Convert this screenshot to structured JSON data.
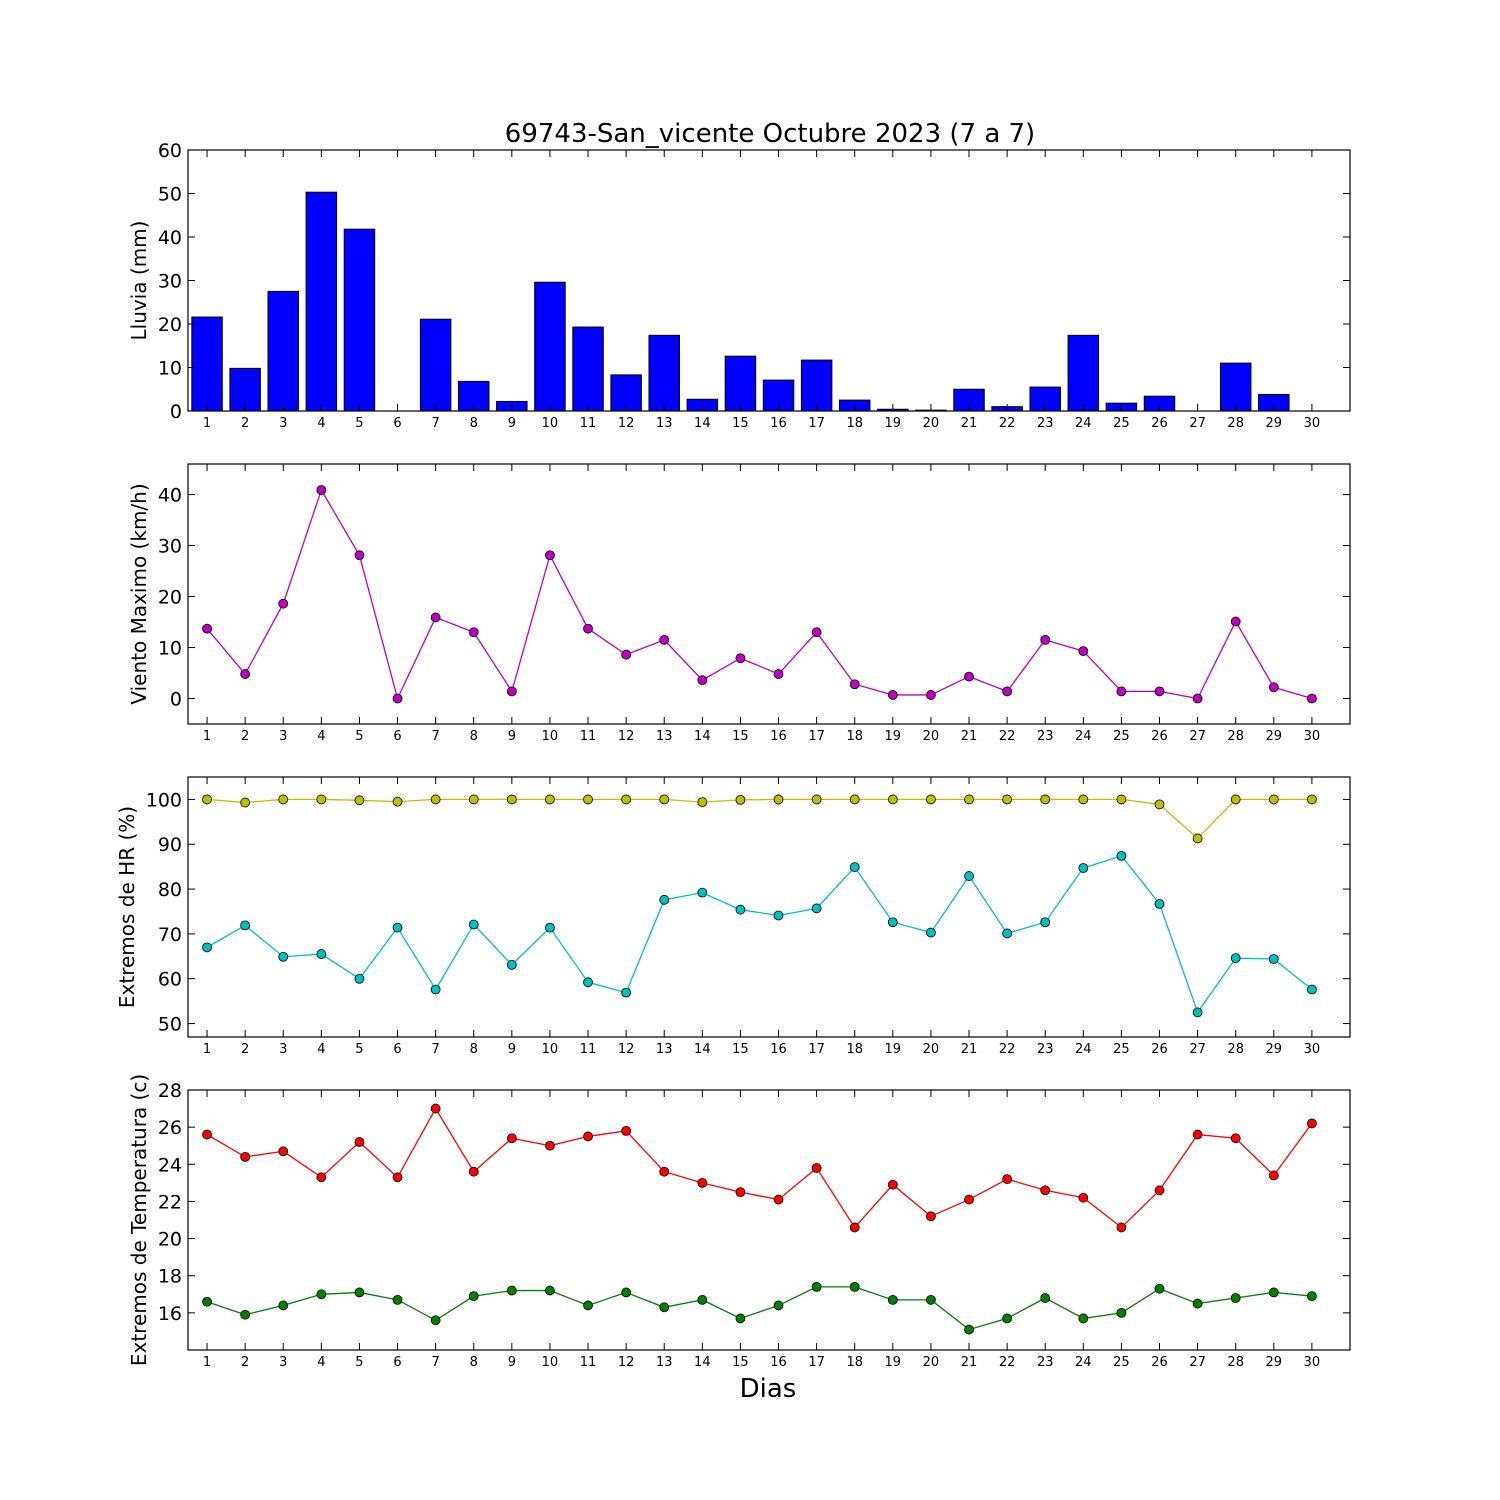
{
  "chart_data": [
    {
      "type": "bar",
      "title": "69743-San_vicente Octubre 2023  (7 a 7)",
      "ylabel": "Lluvia (mm)",
      "xlabel": "",
      "ylim": [
        0,
        60
      ],
      "yticks": [
        0,
        10,
        20,
        30,
        40,
        50,
        60
      ],
      "categories": [
        "1",
        "2",
        "3",
        "4",
        "5",
        "6",
        "7",
        "8",
        "9",
        "10",
        "11",
        "12",
        "13",
        "14",
        "15",
        "16",
        "17",
        "18",
        "19",
        "20",
        "21",
        "22",
        "23",
        "24",
        "25",
        "26",
        "27",
        "28",
        "29",
        "30"
      ],
      "series": [
        {
          "color": "#0000ff",
          "values": [
            21.6,
            9.8,
            27.5,
            50.3,
            41.8,
            0.0,
            21.1,
            6.8,
            2.2,
            29.6,
            19.3,
            8.3,
            17.4,
            2.7,
            12.6,
            7.1,
            11.7,
            2.5,
            0.4,
            0.2,
            5.0,
            1.0,
            5.5,
            17.4,
            1.8,
            3.4,
            0.0,
            11.0,
            3.8,
            0.0
          ]
        }
      ],
      "grid": false
    },
    {
      "type": "line",
      "ylabel": "Viento Maximo (km/h)",
      "xlabel": "",
      "ylim": [
        -5,
        46
      ],
      "yticks": [
        0,
        10,
        20,
        30,
        40
      ],
      "categories": [
        "1",
        "2",
        "3",
        "4",
        "5",
        "6",
        "7",
        "8",
        "9",
        "10",
        "11",
        "12",
        "13",
        "14",
        "15",
        "16",
        "17",
        "18",
        "19",
        "20",
        "21",
        "22",
        "23",
        "24",
        "25",
        "26",
        "27",
        "28",
        "29",
        "30"
      ],
      "series": [
        {
          "color": "#bf00bf",
          "values": [
            13.7,
            4.8,
            18.6,
            40.9,
            28.1,
            0.0,
            15.9,
            13.0,
            1.4,
            28.1,
            13.7,
            8.6,
            11.5,
            3.6,
            7.9,
            4.8,
            13.0,
            2.8,
            0.7,
            0.7,
            4.3,
            1.4,
            11.5,
            9.3,
            1.4,
            1.4,
            0.0,
            15.1,
            2.2,
            0.0
          ]
        }
      ],
      "grid": false
    },
    {
      "type": "line",
      "ylabel": "Extremos de HR (%)",
      "xlabel": "",
      "ylim": [
        47,
        105
      ],
      "yticks": [
        50,
        60,
        70,
        80,
        90,
        100
      ],
      "categories": [
        "1",
        "2",
        "3",
        "4",
        "5",
        "6",
        "7",
        "8",
        "9",
        "10",
        "11",
        "12",
        "13",
        "14",
        "15",
        "16",
        "17",
        "18",
        "19",
        "20",
        "21",
        "22",
        "23",
        "24",
        "25",
        "26",
        "27",
        "28",
        "29",
        "30"
      ],
      "series": [
        {
          "color": "#bfbf00",
          "values": [
            100,
            99.3,
            100,
            100,
            99.8,
            99.5,
            100,
            100,
            100,
            100,
            100,
            100,
            100,
            99.4,
            99.9,
            100,
            100,
            100,
            100,
            100,
            100,
            100,
            100,
            100,
            100,
            98.9,
            91.3,
            100,
            100,
            100
          ]
        },
        {
          "color": "#00bfbf",
          "values": [
            67.0,
            71.9,
            64.9,
            65.5,
            60.0,
            71.4,
            57.6,
            72.1,
            63.1,
            71.4,
            59.2,
            56.9,
            77.6,
            79.2,
            75.4,
            74.1,
            75.7,
            84.9,
            72.6,
            70.3,
            82.9,
            70.1,
            72.6,
            84.7,
            87.4,
            76.7,
            52.5,
            64.6,
            64.4,
            57.6
          ]
        }
      ],
      "grid": false
    },
    {
      "type": "line",
      "ylabel": "Extremos de Temperatura (c)",
      "xlabel": "Dias",
      "ylim": [
        14,
        28
      ],
      "yticks": [
        16,
        18,
        20,
        22,
        24,
        26,
        28
      ],
      "categories": [
        "1",
        "2",
        "3",
        "4",
        "5",
        "6",
        "7",
        "8",
        "9",
        "10",
        "11",
        "12",
        "13",
        "14",
        "15",
        "16",
        "17",
        "18",
        "19",
        "20",
        "21",
        "22",
        "23",
        "24",
        "25",
        "26",
        "27",
        "28",
        "29",
        "30"
      ],
      "series": [
        {
          "color": "#ff0000",
          "values": [
            25.6,
            24.4,
            24.7,
            23.3,
            25.2,
            23.3,
            27.0,
            23.6,
            25.4,
            25.0,
            25.5,
            25.8,
            23.6,
            23.0,
            22.5,
            22.1,
            23.8,
            20.6,
            22.9,
            21.2,
            22.1,
            23.2,
            22.6,
            22.2,
            20.6,
            22.6,
            25.6,
            25.4,
            23.4,
            26.2
          ]
        },
        {
          "color": "#008000",
          "values": [
            16.6,
            15.9,
            16.4,
            17.0,
            17.1,
            16.7,
            15.6,
            16.9,
            17.2,
            17.2,
            16.4,
            17.1,
            16.3,
            16.7,
            15.7,
            16.4,
            17.4,
            17.4,
            16.7,
            16.7,
            15.1,
            15.7,
            16.8,
            15.7,
            16.0,
            17.3,
            16.5,
            16.8,
            17.1,
            16.9
          ]
        }
      ],
      "grid": false
    }
  ]
}
